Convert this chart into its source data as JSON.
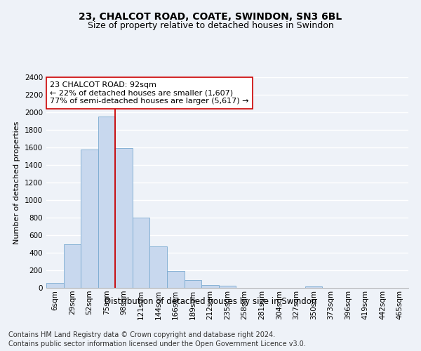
{
  "title": "23, CHALCOT ROAD, COATE, SWINDON, SN3 6BL",
  "subtitle": "Size of property relative to detached houses in Swindon",
  "xlabel": "Distribution of detached houses by size in Swindon",
  "ylabel": "Number of detached properties",
  "bar_color": "#c8d8ee",
  "bar_edge_color": "#7aaad0",
  "categories": [
    "6sqm",
    "29sqm",
    "52sqm",
    "75sqm",
    "98sqm",
    "121sqm",
    "144sqm",
    "166sqm",
    "189sqm",
    "212sqm",
    "235sqm",
    "258sqm",
    "281sqm",
    "304sqm",
    "327sqm",
    "350sqm",
    "373sqm",
    "396sqm",
    "419sqm",
    "442sqm",
    "465sqm"
  ],
  "values": [
    60,
    500,
    1580,
    1950,
    1590,
    800,
    475,
    195,
    90,
    35,
    25,
    0,
    0,
    0,
    0,
    20,
    0,
    0,
    0,
    0,
    0
  ],
  "ylim": [
    0,
    2400
  ],
  "yticks": [
    0,
    200,
    400,
    600,
    800,
    1000,
    1200,
    1400,
    1600,
    1800,
    2000,
    2200,
    2400
  ],
  "red_line_index": 4,
  "annotation_line1": "23 CHALCOT ROAD: 92sqm",
  "annotation_line2": "← 22% of detached houses are smaller (1,607)",
  "annotation_line3": "77% of semi-detached houses are larger (5,617) →",
  "annotation_box_color": "#ffffff",
  "annotation_box_edge_color": "#cc0000",
  "red_line_color": "#cc0000",
  "footnote1": "Contains HM Land Registry data © Crown copyright and database right 2024.",
  "footnote2": "Contains public sector information licensed under the Open Government Licence v3.0.",
  "bg_color": "#eef2f8",
  "plot_bg_color": "#eef2f8",
  "grid_color": "#ffffff",
  "title_fontsize": 10,
  "subtitle_fontsize": 9,
  "xlabel_fontsize": 8.5,
  "ylabel_fontsize": 8,
  "tick_fontsize": 7.5,
  "annotation_fontsize": 8,
  "footnote_fontsize": 7
}
